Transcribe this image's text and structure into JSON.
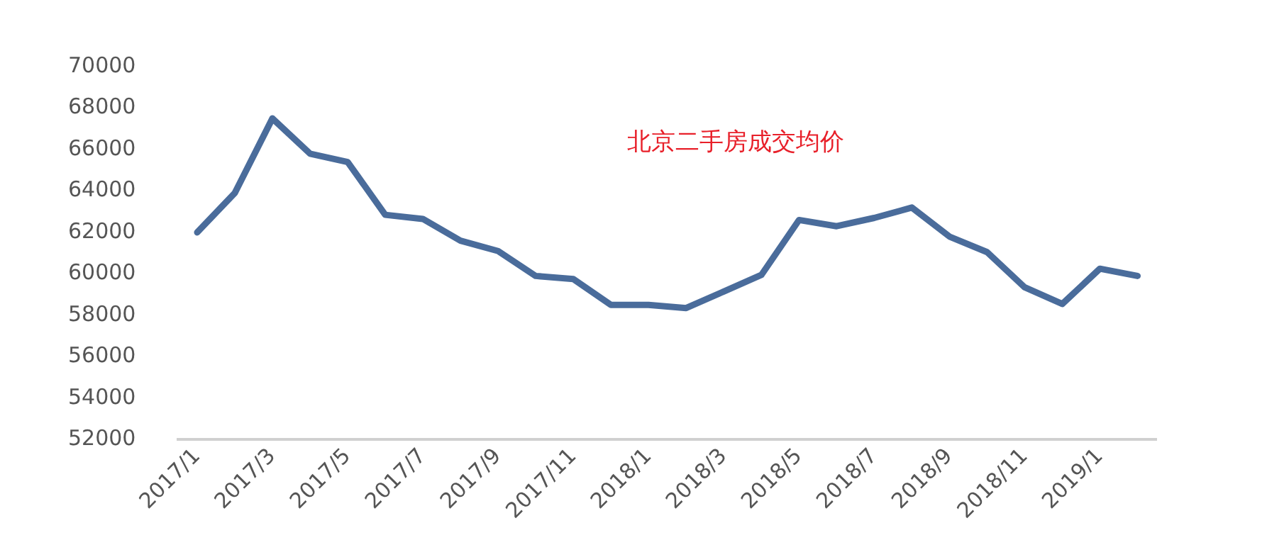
{
  "chart_data": {
    "type": "line",
    "annotations": [
      "北京二手房成交均价"
    ],
    "categories": [
      "2017/1",
      null,
      "2017/3",
      null,
      "2017/5",
      null,
      "2017/7",
      null,
      "2017/9",
      null,
      "2017/11",
      null,
      "2018/1",
      null,
      "2018/3",
      null,
      "2018/5",
      null,
      "2018/7",
      null,
      "2018/9",
      null,
      "2018/11",
      null,
      "2019/1",
      null
    ],
    "series": [
      {
        "color": "#4a6c9b",
        "values": [
          62000,
          63900,
          67500,
          65800,
          65400,
          62850,
          62650,
          61600,
          61100,
          59900,
          59750,
          58500,
          58500,
          58350,
          59150,
          59950,
          62600,
          62300,
          62700,
          63200,
          61800,
          61050,
          59350,
          58550,
          60250,
          59900
        ]
      }
    ],
    "ylim": [
      52000,
      70000
    ],
    "yticks": [
      52000,
      54000,
      56000,
      58000,
      60000,
      62000,
      64000,
      66000,
      68000,
      70000
    ],
    "grid": false,
    "legend": false,
    "marker": "none",
    "line_style": "solid"
  }
}
